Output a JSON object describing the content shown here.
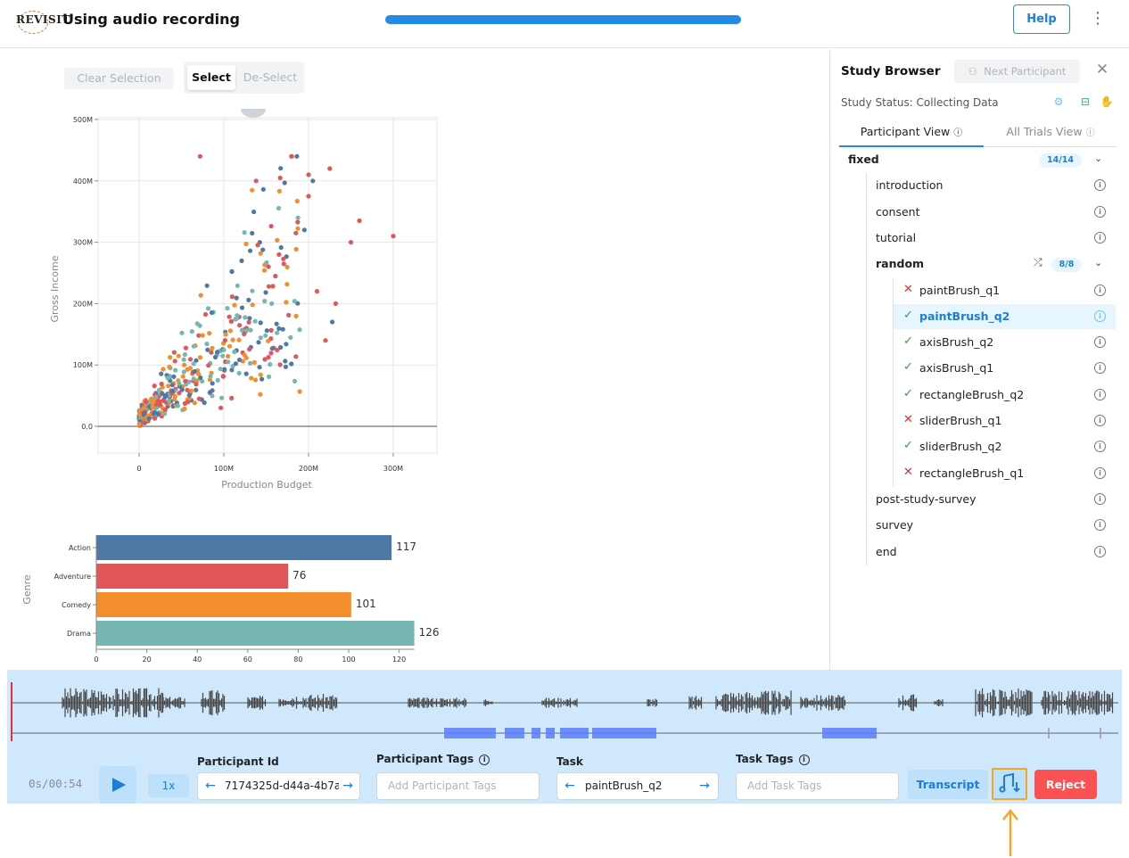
{
  "header": {
    "logo_text": "REVISIT",
    "title": "Using audio recording",
    "progress": 1.0,
    "help_label": "Help",
    "menu_icon": "kebab-icon"
  },
  "toolbar": {
    "clear_label": "Clear Selection",
    "select_label": "Select",
    "deselect_label": "De-Select"
  },
  "scatter": {
    "xlabel": "Production Budget",
    "ylabel": "Gross Income",
    "x_ticks": [
      "0",
      "100M",
      "200M",
      "300M"
    ],
    "y_ticks": [
      "0.0",
      "100M",
      "200M",
      "300M",
      "400M",
      "500M"
    ],
    "colors": {
      "Action": "#4e79a7",
      "Adventure": "#e15759",
      "Comedy": "#f28e2b",
      "Drama": "#76b7b2"
    }
  },
  "chart_data": {
    "type": "bar",
    "orientation": "horizontal",
    "categories": [
      "Action",
      "Adventure",
      "Comedy",
      "Drama"
    ],
    "values": [
      117,
      76,
      101,
      126
    ],
    "colors": [
      "#4e79a7",
      "#e15759",
      "#f28e2b",
      "#76b7b2"
    ],
    "ylabel": "Genre",
    "xlim": [
      0,
      126
    ],
    "x_ticks": [
      "0",
      "20",
      "40",
      "60",
      "80",
      "100",
      "120"
    ]
  },
  "sidebar": {
    "title": "Study Browser",
    "next_participant": "Next Participant",
    "status": "Study Status: Collecting Data",
    "tab_participant": "Participant View",
    "tab_all": "All Trials View",
    "fixed_label": "fixed",
    "fixed_badge": "14/14",
    "random_label": "random",
    "random_badge": "8/8",
    "top_items": [
      "introduction",
      "consent",
      "tutorial"
    ],
    "random_items": [
      {
        "label": "paintBrush_q1",
        "status": "fail"
      },
      {
        "label": "paintBrush_q2",
        "status": "pass",
        "active": true
      },
      {
        "label": "axisBrush_q2",
        "status": "pass"
      },
      {
        "label": "axisBrush_q1",
        "status": "pass"
      },
      {
        "label": "rectangleBrush_q2",
        "status": "pass"
      },
      {
        "label": "sliderBrush_q1",
        "status": "fail"
      },
      {
        "label": "sliderBrush_q2",
        "status": "pass"
      },
      {
        "label": "rectangleBrush_q1",
        "status": "fail"
      }
    ],
    "bottom_items": [
      "post-study-survey",
      "survey",
      "end"
    ]
  },
  "bottom": {
    "time": "0s/00:54",
    "speed": "1x",
    "participant_id_label": "Participant Id",
    "participant_id_value": "7174325d-d44a-4b7a",
    "participant_tags_label": "Participant Tags",
    "participant_tags_placeholder": "Add Participant Tags",
    "task_label": "Task",
    "task_value": "paintBrush_q2",
    "task_tags_label": "Task Tags",
    "task_tags_placeholder": "Add Task Tags",
    "transcript_label": "Transcript",
    "reject_label": "Reject"
  }
}
